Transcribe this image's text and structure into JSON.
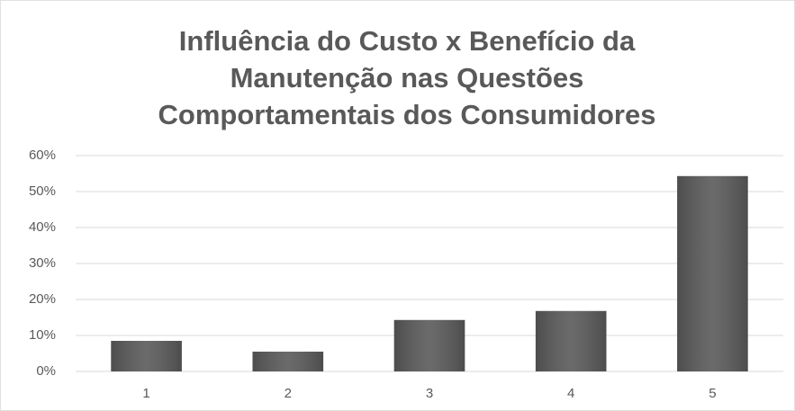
{
  "chart_data": {
    "type": "bar",
    "title": [
      "Influência do Custo x Benefício da",
      "Manutenção nas Questões",
      "Comportamentais dos Consumidores"
    ],
    "categories": [
      "1",
      "2",
      "3",
      "4",
      "5"
    ],
    "values": [
      8.5,
      5.5,
      14.3,
      16.8,
      54.3
    ],
    "color": "#5a5a5a",
    "ylim": [
      0,
      60
    ],
    "yticks": [
      {
        "value": 0,
        "label": "0%"
      },
      {
        "value": 10,
        "label": "10%"
      },
      {
        "value": 20,
        "label": "20%"
      },
      {
        "value": 30,
        "label": "30%"
      },
      {
        "value": 40,
        "label": "40%"
      },
      {
        "value": 50,
        "label": "50%"
      },
      {
        "value": 60,
        "label": "60%"
      }
    ],
    "grid": true
  }
}
